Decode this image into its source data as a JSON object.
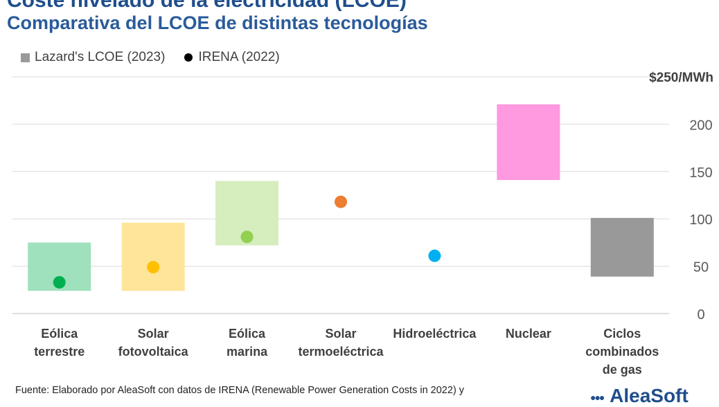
{
  "title": "Coste nivelado de la electricidad (LCOE)",
  "subtitle": "Comparativa del LCOE de distintas tecnologías",
  "legend": {
    "lazard": "Lazard's LCOE (2023)",
    "irena": "IRENA (2022)"
  },
  "footer": "Fuente: Elaborado por AleaSoft con datos de IRENA (Renewable Power Generation Costs in 2022) y",
  "logo_text": "AleaSoft",
  "logo_icon": "dots-icon",
  "chart_data": {
    "type": "bar",
    "subtype": "floating-range-with-points",
    "unit_label": "$250/MWh",
    "y_ticks": [
      "0",
      "50",
      "100",
      "150",
      "200"
    ],
    "ylim": [
      0,
      250
    ],
    "grid": true,
    "legend_position": "top-left",
    "categories": [
      {
        "lines": [
          "Eólica",
          "terrestre"
        ]
      },
      {
        "lines": [
          "Solar",
          "fotovoltaica"
        ]
      },
      {
        "lines": [
          "Eólica",
          "marina"
        ]
      },
      {
        "lines": [
          "Solar",
          "termoeléctrica"
        ]
      },
      {
        "lines": [
          "Hidroeléctrica"
        ]
      },
      {
        "lines": [
          "Nuclear"
        ]
      },
      {
        "lines": [
          "Ciclos",
          "combinados",
          "de gas"
        ]
      }
    ],
    "series": [
      {
        "name": "Lazard's LCOE (2023)",
        "kind": "range",
        "values": [
          [
            24,
            75
          ],
          [
            24,
            96
          ],
          [
            72,
            140
          ],
          null,
          null,
          [
            141,
            221
          ],
          [
            39,
            101
          ]
        ],
        "colors": [
          "#9fe0bd",
          "#ffe59a",
          "#d6edbd",
          null,
          null,
          "#ff99e0",
          "#999999"
        ]
      },
      {
        "name": "IRENA (2022)",
        "kind": "point",
        "values": [
          33,
          49,
          81,
          118,
          61,
          null,
          null
        ],
        "colors": [
          "#00b050",
          "#ffc000",
          "#92d050",
          "#ed7d31",
          "#00b0f0",
          null,
          null
        ]
      }
    ]
  }
}
